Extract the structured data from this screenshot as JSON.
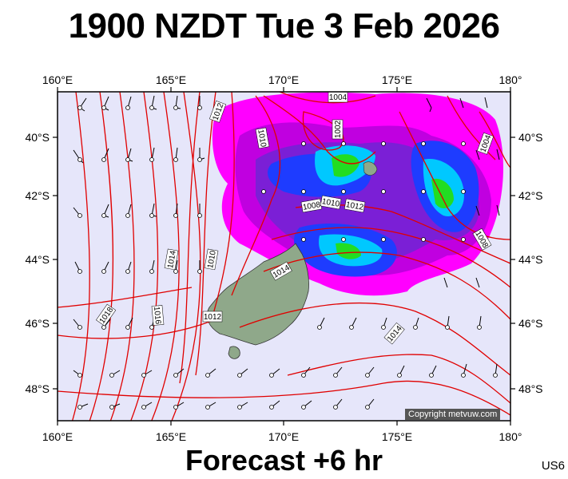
{
  "title": "1900 NZDT Tue 3 Feb 2026",
  "footer": "Forecast +6 hr",
  "model_code": "US6",
  "copyright": "Copyright metvuw.com",
  "longitudes": [
    "160°E",
    "165°E",
    "170°E",
    "175°E",
    "180°"
  ],
  "latitudes": [
    "40°S",
    "42°S",
    "44°S",
    "46°S",
    "48°S"
  ],
  "isobar_labels": [
    "1012",
    "1010",
    "1002",
    "1008",
    "1010",
    "1012",
    "1014",
    "1010",
    "1014",
    "1016",
    "1018",
    "1012",
    "1014",
    "1004",
    "1004",
    "1008"
  ],
  "colors": {
    "ocean": "#e6e6fa",
    "isobar": "#e00000",
    "land": "#8fa88a",
    "rain_light": "#ff00ff",
    "rain_moderate": "#7b1fd6",
    "rain_heavy": "#1e3cff",
    "rain_very_heavy": "#00c8ff",
    "rain_extreme": "#22dd22"
  }
}
